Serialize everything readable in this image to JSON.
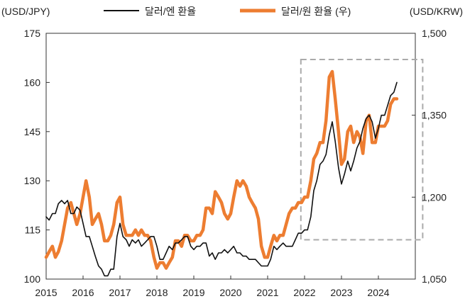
{
  "chart_data": {
    "type": "line",
    "title": "",
    "legend": {
      "placement": "top-center"
    },
    "grid": false,
    "left_axis": {
      "unit_label": "(USD/JPY)",
      "range": [
        100,
        175
      ],
      "ticks": [
        "100",
        "115",
        "130",
        "145",
        "160",
        "175"
      ]
    },
    "right_axis": {
      "unit_label": "(USD/KRW)",
      "range": [
        1050,
        1500
      ],
      "ticks": [
        "1,050",
        "1,200",
        "1,350",
        "1,500"
      ]
    },
    "x_axis": {
      "range": [
        2015,
        2025
      ],
      "ticks": [
        "2015",
        "2016",
        "2017",
        "2018",
        "2019",
        "2020",
        "2021",
        "2022",
        "2023",
        "2024"
      ]
    },
    "highlight_box": {
      "x_range": [
        2021.9,
        2025.2
      ],
      "left_axis_range": [
        112,
        167
      ],
      "style": "dashed",
      "color": "#aaaaaa"
    },
    "series": [
      {
        "name": "달러/엔 환율",
        "axis": "left",
        "color": "#111111",
        "x": [
          2015.0,
          2015.08,
          2015.17,
          2015.25,
          2015.33,
          2015.42,
          2015.5,
          2015.58,
          2015.67,
          2015.75,
          2015.83,
          2015.92,
          2016.0,
          2016.08,
          2016.17,
          2016.25,
          2016.33,
          2016.42,
          2016.5,
          2016.58,
          2016.67,
          2016.75,
          2016.83,
          2016.92,
          2017.0,
          2017.08,
          2017.17,
          2017.25,
          2017.33,
          2017.42,
          2017.5,
          2017.58,
          2017.67,
          2017.75,
          2017.83,
          2017.92,
          2018.0,
          2018.08,
          2018.17,
          2018.25,
          2018.33,
          2018.42,
          2018.5,
          2018.58,
          2018.67,
          2018.75,
          2018.83,
          2018.92,
          2019.0,
          2019.08,
          2019.17,
          2019.25,
          2019.33,
          2019.42,
          2019.5,
          2019.58,
          2019.67,
          2019.75,
          2019.83,
          2019.92,
          2020.0,
          2020.08,
          2020.17,
          2020.25,
          2020.33,
          2020.42,
          2020.5,
          2020.58,
          2020.67,
          2020.75,
          2020.83,
          2020.92,
          2021.0,
          2021.08,
          2021.17,
          2021.25,
          2021.33,
          2021.42,
          2021.5,
          2021.58,
          2021.67,
          2021.75,
          2021.83,
          2021.92,
          2022.0,
          2022.08,
          2022.17,
          2022.25,
          2022.33,
          2022.42,
          2022.5,
          2022.58,
          2022.67,
          2022.75,
          2022.83,
          2022.92,
          2023.0,
          2023.08,
          2023.17,
          2023.25,
          2023.33,
          2023.42,
          2023.5,
          2023.58,
          2023.67,
          2023.75,
          2023.83,
          2023.92,
          2024.0,
          2024.08,
          2024.17,
          2024.25,
          2024.33,
          2024.42,
          2024.5
        ],
        "values": [
          119,
          118,
          120,
          120,
          123,
          124,
          123,
          124,
          120,
          120,
          122,
          121,
          117,
          113,
          113,
          110,
          107,
          104,
          103,
          101,
          101,
          103,
          103,
          113,
          117,
          113,
          112,
          110,
          112,
          111,
          112,
          110,
          111,
          112,
          113,
          113,
          110,
          106,
          106,
          108,
          110,
          109,
          111,
          111,
          112,
          113,
          113,
          110,
          109,
          110,
          110,
          111,
          111,
          107,
          108,
          106,
          108,
          108,
          109,
          108,
          109,
          110,
          108,
          108,
          107,
          107,
          106,
          106,
          106,
          105,
          104,
          104,
          104,
          106,
          110,
          109,
          110,
          111,
          110,
          110,
          110,
          112,
          114,
          114,
          115,
          115,
          119,
          127,
          130,
          135,
          136,
          138,
          144,
          148,
          142,
          134,
          129,
          132,
          136,
          133,
          136,
          140,
          142,
          146,
          149,
          150,
          148,
          143,
          146,
          150,
          150,
          153,
          156,
          157,
          160
        ]
      },
      {
        "name": "달러/원 환율 (우)",
        "axis": "right",
        "color": "#ed7d31",
        "x": [
          2015.0,
          2015.08,
          2015.17,
          2015.25,
          2015.33,
          2015.42,
          2015.5,
          2015.58,
          2015.67,
          2015.75,
          2015.83,
          2015.92,
          2016.0,
          2016.08,
          2016.17,
          2016.25,
          2016.33,
          2016.42,
          2016.5,
          2016.58,
          2016.67,
          2016.75,
          2016.83,
          2016.92,
          2017.0,
          2017.08,
          2017.17,
          2017.25,
          2017.33,
          2017.42,
          2017.5,
          2017.58,
          2017.67,
          2017.75,
          2017.83,
          2017.92,
          2018.0,
          2018.08,
          2018.17,
          2018.25,
          2018.33,
          2018.42,
          2018.5,
          2018.58,
          2018.67,
          2018.75,
          2018.83,
          2018.92,
          2019.0,
          2019.08,
          2019.17,
          2019.25,
          2019.33,
          2019.42,
          2019.5,
          2019.58,
          2019.67,
          2019.75,
          2019.83,
          2019.92,
          2020.0,
          2020.08,
          2020.17,
          2020.25,
          2020.33,
          2020.42,
          2020.5,
          2020.58,
          2020.67,
          2020.75,
          2020.83,
          2020.92,
          2021.0,
          2021.08,
          2021.17,
          2021.25,
          2021.33,
          2021.42,
          2021.5,
          2021.58,
          2021.67,
          2021.75,
          2021.83,
          2021.92,
          2022.0,
          2022.08,
          2022.17,
          2022.25,
          2022.33,
          2022.42,
          2022.5,
          2022.58,
          2022.67,
          2022.75,
          2022.83,
          2022.92,
          2023.0,
          2023.08,
          2023.17,
          2023.25,
          2023.33,
          2023.42,
          2023.5,
          2023.58,
          2023.67,
          2023.75,
          2023.83,
          2023.92,
          2024.0,
          2024.08,
          2024.17,
          2024.25,
          2024.33,
          2024.42,
          2024.5
        ],
        "values": [
          1090,
          1100,
          1110,
          1090,
          1100,
          1120,
          1150,
          1180,
          1190,
          1170,
          1150,
          1170,
          1200,
          1230,
          1200,
          1150,
          1160,
          1170,
          1150,
          1120,
          1120,
          1130,
          1150,
          1190,
          1200,
          1150,
          1130,
          1130,
          1130,
          1140,
          1130,
          1140,
          1130,
          1130,
          1120,
          1090,
          1070,
          1080,
          1080,
          1070,
          1080,
          1090,
          1120,
          1120,
          1110,
          1130,
          1130,
          1120,
          1120,
          1130,
          1130,
          1140,
          1180,
          1180,
          1170,
          1210,
          1200,
          1190,
          1170,
          1160,
          1170,
          1200,
          1230,
          1220,
          1230,
          1220,
          1200,
          1190,
          1180,
          1160,
          1110,
          1090,
          1090,
          1110,
          1130,
          1120,
          1130,
          1130,
          1150,
          1170,
          1180,
          1180,
          1190,
          1190,
          1200,
          1200,
          1230,
          1270,
          1280,
          1300,
          1300,
          1340,
          1420,
          1430,
          1380,
          1320,
          1260,
          1270,
          1320,
          1330,
          1300,
          1320,
          1310,
          1280,
          1340,
          1350,
          1300,
          1300,
          1330,
          1330,
          1330,
          1340,
          1370,
          1380,
          1380
        ]
      }
    ]
  }
}
